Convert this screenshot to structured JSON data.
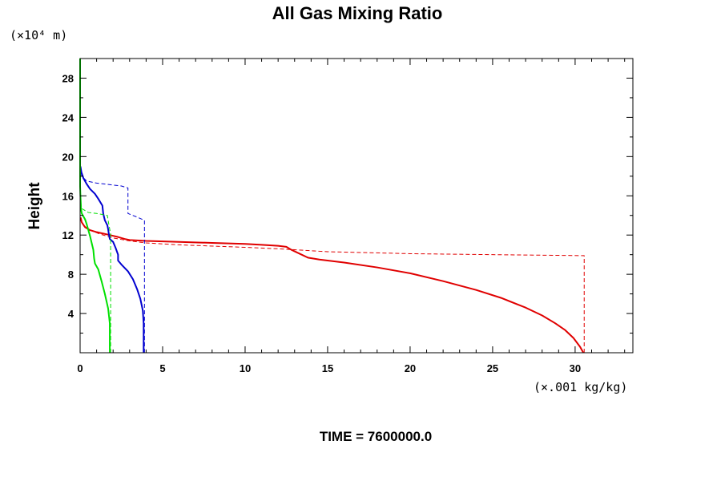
{
  "chart_data": {
    "type": "line",
    "title": "All Gas Mixing Ratio",
    "ylabel": "Height",
    "y_unit": "(×10⁴ m)",
    "x_unit": "(×.001 kg/kg)",
    "xlim": [
      0,
      33.5
    ],
    "ylim": [
      0,
      30
    ],
    "x_ticks": [
      {
        "value": 0,
        "label": "0"
      },
      {
        "value": 5,
        "label": "5"
      },
      {
        "value": 10,
        "label": "10"
      },
      {
        "value": 15,
        "label": "15"
      },
      {
        "value": 20,
        "label": "20"
      },
      {
        "value": 25,
        "label": "25"
      },
      {
        "value": 30,
        "label": "30"
      }
    ],
    "y_ticks": [
      {
        "value": 4,
        "label": "4"
      },
      {
        "value": 8,
        "label": "8"
      },
      {
        "value": 12,
        "label": "12"
      },
      {
        "value": 16,
        "label": "16"
      },
      {
        "value": 20,
        "label": "20"
      },
      {
        "value": 24,
        "label": "24"
      },
      {
        "value": 28,
        "label": "28"
      }
    ],
    "footer": "TIME = 7600000.0",
    "series": [
      {
        "name": "red-solid",
        "color": "#e00000",
        "style": "solid",
        "points": [
          [
            30.5,
            0
          ],
          [
            30.3,
            0.6
          ],
          [
            29.9,
            1.5
          ],
          [
            29.4,
            2.3
          ],
          [
            28.8,
            3.0
          ],
          [
            28.0,
            3.8
          ],
          [
            27.0,
            4.6
          ],
          [
            25.5,
            5.6
          ],
          [
            24.0,
            6.4
          ],
          [
            22.0,
            7.3
          ],
          [
            20.0,
            8.1
          ],
          [
            18.0,
            8.7
          ],
          [
            16.0,
            9.2
          ],
          [
            14.5,
            9.5
          ],
          [
            13.8,
            9.7
          ],
          [
            13.3,
            10.1
          ],
          [
            12.8,
            10.5
          ],
          [
            12.5,
            10.8
          ],
          [
            12.0,
            10.9
          ],
          [
            11.0,
            11.0
          ],
          [
            10.0,
            11.1
          ],
          [
            8.0,
            11.2
          ],
          [
            6.0,
            11.3
          ],
          [
            4.0,
            11.4
          ],
          [
            3.0,
            11.5
          ],
          [
            2.7,
            11.6
          ],
          [
            2.3,
            11.8
          ],
          [
            1.8,
            12.0
          ],
          [
            1.0,
            12.3
          ],
          [
            0.6,
            12.5
          ],
          [
            0.3,
            12.8
          ],
          [
            0.1,
            13.3
          ],
          [
            0.03,
            13.8
          ]
        ]
      },
      {
        "name": "red-dashed",
        "color": "#e00000",
        "style": "dashed",
        "points": [
          [
            30.55,
            0
          ],
          [
            30.55,
            9.9
          ],
          [
            25.0,
            10.0
          ],
          [
            20.0,
            10.1
          ],
          [
            15.0,
            10.3
          ],
          [
            13.0,
            10.5
          ],
          [
            12.0,
            10.6
          ],
          [
            10.0,
            10.75
          ],
          [
            6.0,
            11.0
          ],
          [
            4.0,
            11.2
          ],
          [
            3.0,
            11.4
          ],
          [
            2.0,
            11.7
          ],
          [
            1.2,
            12.1
          ],
          [
            0.6,
            12.5
          ],
          [
            0.2,
            13.0
          ],
          [
            0.04,
            13.5
          ]
        ]
      },
      {
        "name": "blue-solid",
        "color": "#0000d0",
        "style": "solid",
        "points": [
          [
            3.85,
            0
          ],
          [
            3.85,
            3.0
          ],
          [
            3.8,
            4.3
          ],
          [
            3.65,
            5.5
          ],
          [
            3.45,
            6.5
          ],
          [
            3.2,
            7.5
          ],
          [
            2.9,
            8.3
          ],
          [
            2.5,
            9.0
          ],
          [
            2.3,
            9.4
          ],
          [
            2.3,
            10.0
          ],
          [
            2.15,
            10.7
          ],
          [
            2.0,
            11.3
          ],
          [
            1.8,
            11.6
          ],
          [
            1.75,
            12.0
          ],
          [
            1.7,
            12.6
          ],
          [
            1.65,
            13.0
          ],
          [
            1.5,
            13.5
          ],
          [
            1.4,
            14.2
          ],
          [
            1.35,
            15.0
          ],
          [
            1.1,
            15.7
          ],
          [
            0.9,
            16.2
          ],
          [
            0.6,
            16.7
          ],
          [
            0.4,
            17.2
          ],
          [
            0.2,
            17.8
          ],
          [
            0.08,
            18.4
          ],
          [
            0.02,
            19.0
          ]
        ]
      },
      {
        "name": "blue-dashed",
        "color": "#0000d0",
        "style": "dashed",
        "points": [
          [
            3.9,
            0
          ],
          [
            3.9,
            13.5
          ],
          [
            3.5,
            13.8
          ],
          [
            2.9,
            14.2
          ],
          [
            2.9,
            16.8
          ],
          [
            2.5,
            17.0
          ],
          [
            1.0,
            17.3
          ],
          [
            0.4,
            17.5
          ],
          [
            0.1,
            18.0
          ],
          [
            0.02,
            18.8
          ]
        ]
      },
      {
        "name": "green-solid",
        "color": "#00e000",
        "style": "solid",
        "points": [
          [
            1.8,
            0
          ],
          [
            1.8,
            3.0
          ],
          [
            1.7,
            4.5
          ],
          [
            1.5,
            6.0
          ],
          [
            1.3,
            7.3
          ],
          [
            1.1,
            8.5
          ],
          [
            0.9,
            9.1
          ],
          [
            0.85,
            9.6
          ],
          [
            0.8,
            10.5
          ],
          [
            0.7,
            11.2
          ],
          [
            0.6,
            11.9
          ],
          [
            0.5,
            12.5
          ],
          [
            0.4,
            13.1
          ],
          [
            0.3,
            13.6
          ],
          [
            0.1,
            14.2
          ],
          [
            0.05,
            14.7
          ],
          [
            0.05,
            15.0
          ],
          [
            0.02,
            16.0
          ],
          [
            0.0,
            17.0
          ],
          [
            0.0,
            30.0
          ]
        ]
      },
      {
        "name": "green-dashed",
        "color": "#00e000",
        "style": "dashed",
        "points": [
          [
            1.85,
            0
          ],
          [
            1.85,
            12.1
          ],
          [
            1.75,
            13.0
          ],
          [
            1.65,
            14.0
          ],
          [
            1.0,
            14.2
          ],
          [
            0.5,
            14.3
          ],
          [
            0.1,
            14.7
          ],
          [
            0.0,
            15.0
          ],
          [
            0.0,
            16.0
          ]
        ]
      }
    ]
  }
}
